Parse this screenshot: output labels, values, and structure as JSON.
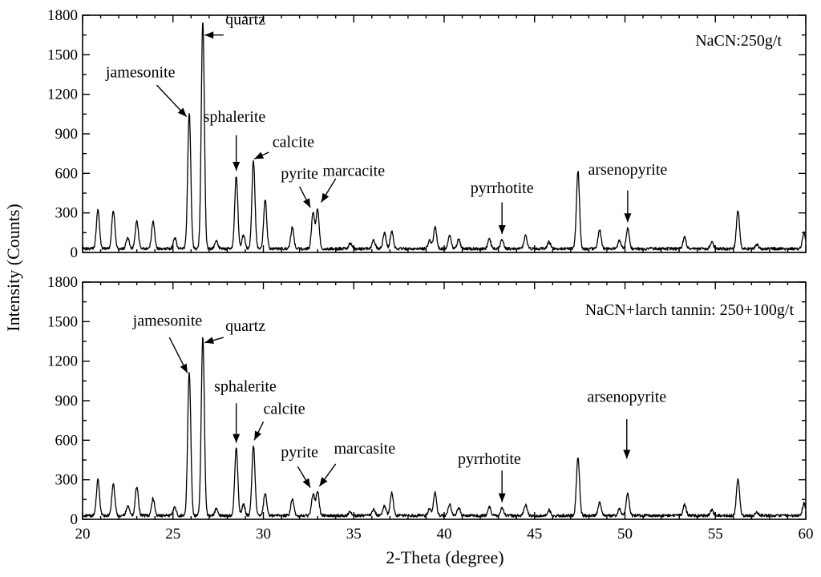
{
  "chart_data": [
    {
      "type": "line",
      "panel": "top",
      "label": "NaCN:250g/t",
      "xlim": [
        20,
        60
      ],
      "ylim": [
        0,
        1800
      ],
      "yticks": [
        0,
        300,
        600,
        900,
        1200,
        1500,
        1800
      ],
      "xticks": [
        20,
        25,
        30,
        35,
        40,
        45,
        50,
        55,
        60
      ],
      "baseline": 28,
      "peaks": [
        {
          "x": 20.85,
          "y": 320
        },
        {
          "x": 21.7,
          "y": 320
        },
        {
          "x": 22.5,
          "y": 110
        },
        {
          "x": 23.0,
          "y": 240
        },
        {
          "x": 23.9,
          "y": 230
        },
        {
          "x": 25.1,
          "y": 110
        },
        {
          "x": 25.9,
          "y": 1060
        },
        {
          "x": 26.65,
          "y": 1760
        },
        {
          "x": 27.4,
          "y": 90
        },
        {
          "x": 28.5,
          "y": 580
        },
        {
          "x": 28.9,
          "y": 130
        },
        {
          "x": 29.45,
          "y": 700
        },
        {
          "x": 30.1,
          "y": 400
        },
        {
          "x": 31.6,
          "y": 190
        },
        {
          "x": 32.75,
          "y": 300
        },
        {
          "x": 33.0,
          "y": 330
        },
        {
          "x": 34.8,
          "y": 70
        },
        {
          "x": 36.1,
          "y": 90
        },
        {
          "x": 36.7,
          "y": 150
        },
        {
          "x": 37.1,
          "y": 160
        },
        {
          "x": 39.2,
          "y": 90
        },
        {
          "x": 39.5,
          "y": 190
        },
        {
          "x": 40.3,
          "y": 130
        },
        {
          "x": 40.8,
          "y": 100
        },
        {
          "x": 42.5,
          "y": 100
        },
        {
          "x": 43.2,
          "y": 100
        },
        {
          "x": 44.5,
          "y": 130
        },
        {
          "x": 45.8,
          "y": 80
        },
        {
          "x": 47.4,
          "y": 620
        },
        {
          "x": 48.6,
          "y": 170
        },
        {
          "x": 49.7,
          "y": 90
        },
        {
          "x": 50.15,
          "y": 180
        },
        {
          "x": 53.3,
          "y": 120
        },
        {
          "x": 54.8,
          "y": 80
        },
        {
          "x": 56.25,
          "y": 320
        },
        {
          "x": 57.3,
          "y": 60
        },
        {
          "x": 59.9,
          "y": 150
        }
      ],
      "annotations": [
        {
          "text": "quartz",
          "tip_x": 26.75,
          "tip_y": 1650,
          "tail_x": 27.8,
          "tail_y": 1650,
          "label_x": 27.9,
          "label_y": 1730,
          "anchor": "start"
        },
        {
          "text": "jamesonite",
          "tip_x": 25.75,
          "tip_y": 1030,
          "tail_x": 24.1,
          "tail_y": 1270,
          "label_x": 23.2,
          "label_y": 1330,
          "anchor": "middle"
        },
        {
          "text": "sphalerite",
          "tip_x": 28.5,
          "tip_y": 620,
          "tail_x": 28.5,
          "tail_y": 890,
          "label_x": 28.4,
          "label_y": 990,
          "anchor": "middle"
        },
        {
          "text": "calcite",
          "tip_x": 29.5,
          "tip_y": 710,
          "tail_x": 30.3,
          "tail_y": 760,
          "label_x": 30.5,
          "label_y": 800,
          "anchor": "start"
        },
        {
          "text": "pyrite",
          "tip_x": 32.6,
          "tip_y": 340,
          "tail_x": 32.0,
          "tail_y": 500,
          "label_x": 32.0,
          "label_y": 560,
          "anchor": "middle"
        },
        {
          "text": "marcacite",
          "tip_x": 33.2,
          "tip_y": 380,
          "tail_x": 34.0,
          "tail_y": 560,
          "label_x": 35.0,
          "label_y": 580,
          "anchor": "middle"
        },
        {
          "text": "pyrrhotite",
          "tip_x": 43.2,
          "tip_y": 140,
          "tail_x": 43.2,
          "tail_y": 380,
          "label_x": 43.2,
          "label_y": 450,
          "anchor": "middle"
        },
        {
          "text": "arsenopyrite",
          "tip_x": 50.15,
          "tip_y": 230,
          "tail_x": 50.15,
          "tail_y": 470,
          "label_x": 50.15,
          "label_y": 590,
          "anchor": "middle"
        }
      ]
    },
    {
      "type": "line",
      "panel": "bottom",
      "label": "NaCN+larch tannin: 250+100g/t",
      "xlim": [
        20,
        60
      ],
      "ylim": [
        0,
        1800
      ],
      "yticks": [
        0,
        300,
        600,
        900,
        1200,
        1500,
        1800
      ],
      "xticks": [
        20,
        25,
        30,
        35,
        40,
        45,
        50,
        55,
        60
      ],
      "xlabel": "2-Theta (degree)",
      "baseline": 28,
      "peaks": [
        {
          "x": 20.85,
          "y": 300
        },
        {
          "x": 21.7,
          "y": 270
        },
        {
          "x": 22.5,
          "y": 100
        },
        {
          "x": 23.0,
          "y": 250
        },
        {
          "x": 23.9,
          "y": 160
        },
        {
          "x": 25.1,
          "y": 90
        },
        {
          "x": 25.9,
          "y": 1120
        },
        {
          "x": 26.65,
          "y": 1380
        },
        {
          "x": 27.4,
          "y": 80
        },
        {
          "x": 28.5,
          "y": 540
        },
        {
          "x": 28.9,
          "y": 110
        },
        {
          "x": 29.45,
          "y": 560
        },
        {
          "x": 30.1,
          "y": 200
        },
        {
          "x": 31.6,
          "y": 150
        },
        {
          "x": 32.75,
          "y": 190
        },
        {
          "x": 33.0,
          "y": 210
        },
        {
          "x": 34.8,
          "y": 60
        },
        {
          "x": 36.1,
          "y": 80
        },
        {
          "x": 36.7,
          "y": 100
        },
        {
          "x": 37.1,
          "y": 200
        },
        {
          "x": 39.2,
          "y": 80
        },
        {
          "x": 39.5,
          "y": 200
        },
        {
          "x": 40.3,
          "y": 110
        },
        {
          "x": 40.8,
          "y": 90
        },
        {
          "x": 42.5,
          "y": 90
        },
        {
          "x": 43.2,
          "y": 90
        },
        {
          "x": 44.5,
          "y": 110
        },
        {
          "x": 45.8,
          "y": 70
        },
        {
          "x": 47.4,
          "y": 470
        },
        {
          "x": 48.6,
          "y": 130
        },
        {
          "x": 49.7,
          "y": 80
        },
        {
          "x": 50.15,
          "y": 200
        },
        {
          "x": 53.3,
          "y": 110
        },
        {
          "x": 54.8,
          "y": 70
        },
        {
          "x": 56.25,
          "y": 310
        },
        {
          "x": 57.3,
          "y": 50
        },
        {
          "x": 59.9,
          "y": 120
        }
      ],
      "annotations": [
        {
          "text": "quartz",
          "tip_x": 26.75,
          "tip_y": 1340,
          "tail_x": 27.8,
          "tail_y": 1380,
          "label_x": 27.9,
          "label_y": 1430,
          "anchor": "start"
        },
        {
          "text": "jamesonite",
          "tip_x": 25.8,
          "tip_y": 1110,
          "tail_x": 24.8,
          "tail_y": 1380,
          "label_x": 24.7,
          "label_y": 1470,
          "anchor": "middle"
        },
        {
          "text": "sphalerite",
          "tip_x": 28.5,
          "tip_y": 580,
          "tail_x": 28.5,
          "tail_y": 880,
          "label_x": 29.0,
          "label_y": 970,
          "anchor": "middle"
        },
        {
          "text": "calcite",
          "tip_x": 29.5,
          "tip_y": 600,
          "tail_x": 30.0,
          "tail_y": 740,
          "label_x": 30.0,
          "label_y": 800,
          "anchor": "start"
        },
        {
          "text": "pyrite",
          "tip_x": 32.6,
          "tip_y": 240,
          "tail_x": 31.9,
          "tail_y": 400,
          "label_x": 32.0,
          "label_y": 470,
          "anchor": "middle"
        },
        {
          "text": "marcasite",
          "tip_x": 33.1,
          "tip_y": 250,
          "tail_x": 34.0,
          "tail_y": 420,
          "label_x": 35.6,
          "label_y": 500,
          "anchor": "middle"
        },
        {
          "text": "pyrrhotite",
          "tip_x": 43.2,
          "tip_y": 130,
          "tail_x": 43.2,
          "tail_y": 370,
          "label_x": 42.5,
          "label_y": 420,
          "anchor": "middle"
        },
        {
          "text": "arsenopyrite",
          "tip_x": 50.1,
          "tip_y": 460,
          "tail_x": 50.1,
          "tail_y": 760,
          "label_x": 50.1,
          "label_y": 890,
          "anchor": "middle"
        }
      ]
    }
  ],
  "ylabel": "Intensity (Counts)"
}
